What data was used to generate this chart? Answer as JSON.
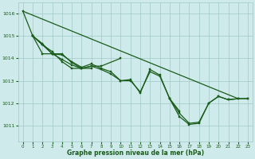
{
  "background_color": "#ceeaea",
  "grid_color": "#a0c8c8",
  "line_color": "#1a5c1a",
  "xlabel": "Graphe pression niveau de la mer (hPa)",
  "xlabel_color": "#1a5c1a",
  "ylabel_ticks": [
    1011,
    1012,
    1013,
    1014,
    1015,
    1016
  ],
  "xticks": [
    0,
    1,
    2,
    3,
    4,
    5,
    6,
    7,
    8,
    9,
    10,
    11,
    12,
    13,
    14,
    15,
    16,
    17,
    18,
    19,
    20,
    21,
    22,
    23
  ],
  "xlim": [
    -0.5,
    23.5
  ],
  "ylim": [
    1010.3,
    1016.5
  ],
  "straight_line": {
    "x": [
      0,
      22
    ],
    "y": [
      1016.1,
      1012.2
    ]
  },
  "line1": {
    "x": [
      0,
      1,
      2,
      3,
      4,
      5,
      6,
      7,
      8,
      10
    ],
    "y": [
      1016.1,
      1015.0,
      1014.6,
      1014.3,
      1013.85,
      1013.55,
      1013.55,
      1013.65,
      1013.65,
      1014.0
    ]
  },
  "line2": {
    "x": [
      1,
      2,
      3,
      4,
      5,
      6,
      7
    ],
    "y": [
      1015.0,
      1014.65,
      1014.2,
      1014.2,
      1013.8,
      1013.55,
      1013.55
    ]
  },
  "line3": {
    "x": [
      1,
      2,
      3,
      4,
      5,
      6,
      7,
      8,
      9,
      10,
      11,
      12,
      13,
      14,
      15,
      16
    ],
    "y": [
      1015.0,
      1014.6,
      1014.2,
      1014.15,
      1013.85,
      1013.6,
      1013.75,
      1013.55,
      1013.4,
      1013.0,
      1013.05,
      1012.45,
      1013.5,
      1013.25,
      1012.2,
      1011.65
    ]
  },
  "line4": {
    "x": [
      1,
      2,
      3,
      4,
      5,
      6,
      7,
      8,
      9,
      10,
      11,
      12,
      13,
      14,
      15,
      16,
      17,
      18,
      19,
      20,
      21,
      22,
      23
    ],
    "y": [
      1015.0,
      1014.2,
      1014.2,
      1013.95,
      1013.7,
      1013.55,
      1013.65,
      1013.5,
      1013.3,
      1013.0,
      1013.0,
      1012.5,
      1013.4,
      1013.2,
      1012.2,
      1011.55,
      1011.1,
      1011.15,
      1012.0,
      1012.3,
      1012.15,
      1012.2,
      1012.2
    ]
  },
  "line5": {
    "x": [
      15,
      16,
      17,
      18,
      19,
      20,
      21,
      22,
      23
    ],
    "y": [
      1012.2,
      1011.4,
      1011.05,
      1011.1,
      1012.0,
      1012.3,
      1012.15,
      1012.2,
      1012.2
    ]
  }
}
